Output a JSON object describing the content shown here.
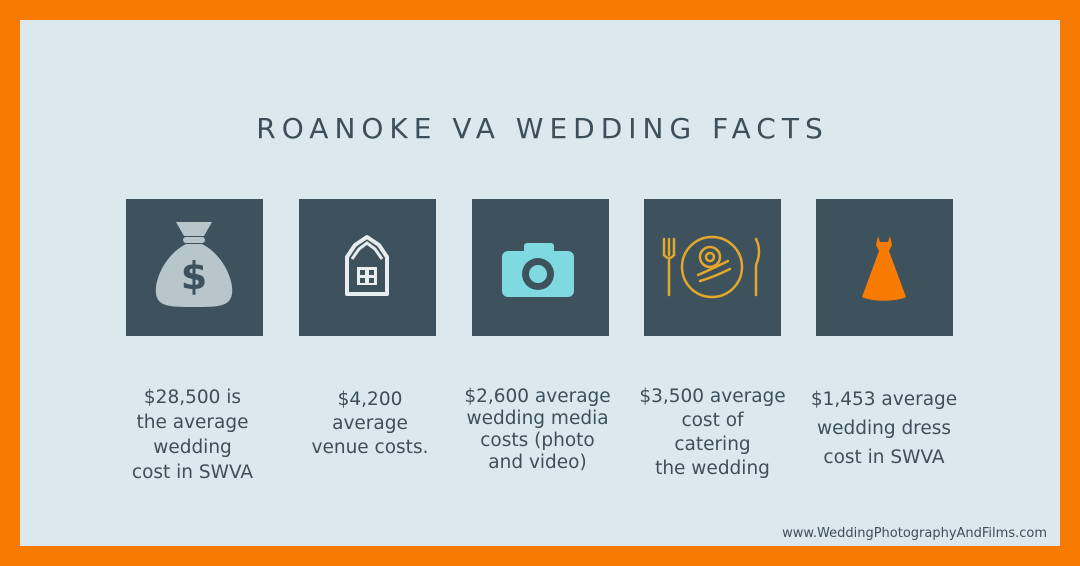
{
  "title": "ROANOKE VA WEDDING FACTS",
  "facts": [
    {
      "icon": "money-bag-icon",
      "caption_lines": [
        "$28,500 is",
        "the average",
        "wedding",
        "cost in SWVA"
      ]
    },
    {
      "icon": "barn-venue-icon",
      "caption_lines": [
        "$4,200",
        "average",
        "venue costs."
      ]
    },
    {
      "icon": "camera-icon",
      "caption_lines": [
        "$2,600 average",
        "wedding media",
        "costs (photo",
        "and video)"
      ]
    },
    {
      "icon": "plate-cutlery-icon",
      "caption_lines": [
        "$3,500 average",
        "cost of",
        "catering",
        "the wedding"
      ]
    },
    {
      "icon": "dress-icon",
      "caption_lines": [
        "$1,453 average",
        "wedding dress",
        "cost in SWVA"
      ]
    }
  ],
  "footer": "www.WeddingPhotographyAndFilms.com",
  "colors": {
    "border": "#f77a03",
    "background": "#dbe9ee",
    "tile": "#3d525c",
    "text": "#3d4f59",
    "camera": "#7fd9e0",
    "cutlery": "#e3a72a",
    "dress": "#f77a03",
    "money_bag": "#b6c6cb"
  }
}
